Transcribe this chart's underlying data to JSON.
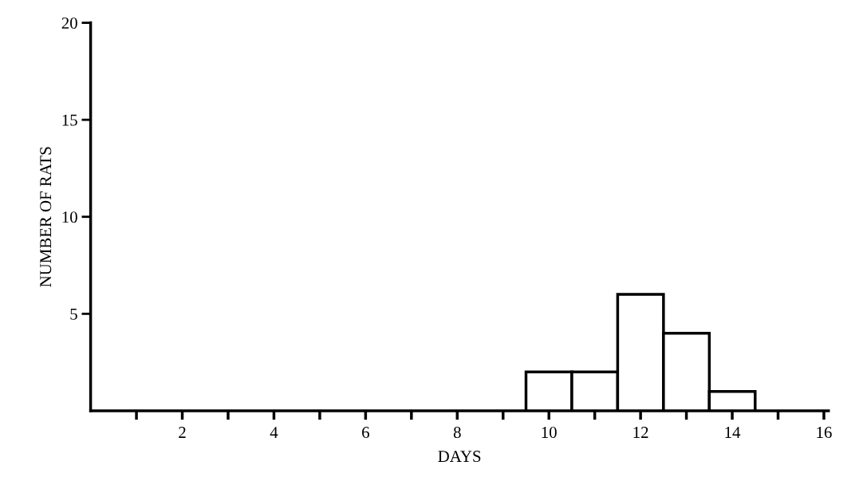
{
  "chart_data": {
    "type": "histogram",
    "xlabel": "DAYS",
    "ylabel": "NUMBER OF RATS",
    "bins": [
      9.5,
      10.5,
      11.5,
      12.5,
      13.5,
      14.5
    ],
    "values": [
      2,
      2,
      6,
      4,
      1
    ],
    "color": "#ffffff",
    "xlim": [
      0,
      16.1
    ],
    "ylim": [
      0,
      20
    ],
    "xticks": [
      {
        "value": 1,
        "label": null
      },
      2,
      {
        "value": 3,
        "label": null
      },
      4,
      {
        "value": 5,
        "label": null
      },
      6,
      {
        "value": 7,
        "label": null
      },
      8,
      {
        "value": 9,
        "label": null
      },
      10,
      {
        "value": 11,
        "label": null
      },
      12,
      {
        "value": 13,
        "label": null
      },
      14,
      {
        "value": 15,
        "label": null
      },
      16
    ],
    "yticks": [
      5,
      10,
      15,
      20
    ],
    "grid": false
  }
}
